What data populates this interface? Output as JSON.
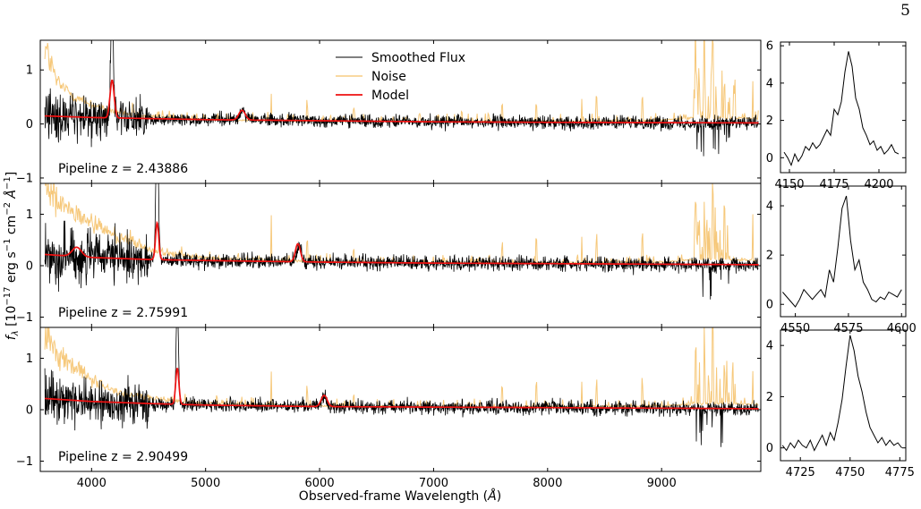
{
  "page_number": "5",
  "colors": {
    "flux": "#000000",
    "noise": "#f5c26b",
    "model": "#ee1111"
  },
  "shared": {
    "xlabel": "Observed-frame Wavelength (Å)",
    "ylabel": "f_λ [10^-17 erg s^-1 cm^-2 Å^-1]"
  },
  "legend": {
    "placement": "top-center of first panel",
    "entries": [
      "Smoothed Flux",
      "Noise",
      "Model"
    ]
  },
  "chart_data": [
    {
      "type": "line",
      "panel": "spectrum-1",
      "title": "Pipeline z = 2.43886",
      "xlim": [
        3550,
        9870
      ],
      "ylim": [
        -1.1,
        1.55
      ],
      "xticks": [
        4000,
        5000,
        6000,
        7000,
        8000,
        9000
      ],
      "yticks": [
        -1,
        0,
        1
      ],
      "series": [
        {
          "name": "Smoothed Flux",
          "color": "#000000",
          "baseline": 0.02,
          "noise_blue": 0.45,
          "noise_red": 0.12,
          "lines": [
            [
              4180,
              2.2,
              12
            ],
            [
              5330,
              0.2,
              25
            ]
          ]
        },
        {
          "name": "Noise",
          "color": "#f5c26b",
          "anchors": [
            [
              3590,
              1.45
            ],
            [
              3700,
              0.75
            ],
            [
              3900,
              0.45
            ],
            [
              4100,
              0.28
            ],
            [
              4400,
              0.15
            ],
            [
              5000,
              0.08
            ],
            [
              6000,
              0.05
            ],
            [
              7000,
              0.05
            ],
            [
              8000,
              0.05
            ],
            [
              9000,
              0.07
            ],
            [
              9300,
              0.12
            ],
            [
              9850,
              0.1
            ]
          ],
          "sky_lines": [
            [
              4360,
              0.2
            ],
            [
              5577,
              0.7
            ],
            [
              5890,
              0.35
            ],
            [
              6300,
              0.25
            ],
            [
              7246,
              0.25
            ],
            [
              7600,
              0.35
            ],
            [
              7900,
              0.4
            ],
            [
              8300,
              0.45
            ],
            [
              8430,
              0.5
            ],
            [
              8830,
              0.5
            ],
            [
              9300,
              1.2
            ],
            [
              9375,
              1.6
            ],
            [
              9450,
              1.4
            ],
            [
              9550,
              0.8
            ],
            [
              9800,
              0.7
            ]
          ]
        },
        {
          "name": "Model",
          "color": "#ee1111",
          "continuum": [
            [
              3580,
              0.15
            ],
            [
              4000,
              0.12
            ],
            [
              5000,
              0.08
            ],
            [
              6000,
              0.06
            ],
            [
              7000,
              0.04
            ],
            [
              8000,
              0.03
            ],
            [
              9800,
              0.02
            ]
          ],
          "lines": [
            [
              4180,
              0.7,
              18
            ],
            [
              5320,
              0.18,
              28
            ]
          ]
        }
      ]
    },
    {
      "type": "line",
      "panel": "spectrum-2",
      "title": "Pipeline z = 2.75991",
      "xlim": [
        3550,
        9870
      ],
      "ylim": [
        -1.2,
        1.6
      ],
      "xticks": [
        4000,
        5000,
        6000,
        7000,
        8000,
        9000
      ],
      "yticks": [
        -1,
        0,
        1
      ],
      "series": [
        {
          "name": "Smoothed Flux",
          "color": "#000000",
          "baseline": 0.05,
          "noise_blue": 0.6,
          "noise_red": 0.14,
          "lines": [
            [
              4575,
              2.3,
              12
            ],
            [
              5820,
              0.3,
              22
            ]
          ]
        },
        {
          "name": "Noise",
          "color": "#f5c26b",
          "anchors": [
            [
              3590,
              1.55
            ],
            [
              3700,
              1.2
            ],
            [
              3900,
              0.95
            ],
            [
              4100,
              0.7
            ],
            [
              4300,
              0.5
            ],
            [
              4500,
              0.3
            ],
            [
              5000,
              0.15
            ],
            [
              6000,
              0.08
            ],
            [
              7000,
              0.06
            ],
            [
              8000,
              0.06
            ],
            [
              9000,
              0.07
            ],
            [
              9300,
              0.12
            ],
            [
              9850,
              0.1
            ]
          ],
          "sky_lines": [
            [
              5577,
              1.0
            ],
            [
              5890,
              0.45
            ],
            [
              6300,
              0.3
            ],
            [
              7600,
              0.4
            ],
            [
              7900,
              0.5
            ],
            [
              8300,
              0.6
            ],
            [
              8430,
              0.6
            ],
            [
              8830,
              0.7
            ],
            [
              9300,
              1.2
            ],
            [
              9375,
              1.6
            ],
            [
              9450,
              1.5
            ],
            [
              9550,
              0.9
            ],
            [
              9800,
              0.9
            ]
          ]
        },
        {
          "name": "Model",
          "color": "#ee1111",
          "continuum": [
            [
              3580,
              0.22
            ],
            [
              4000,
              0.16
            ],
            [
              4500,
              0.12
            ],
            [
              5000,
              0.1
            ],
            [
              6000,
              0.07
            ],
            [
              7000,
              0.05
            ],
            [
              8000,
              0.04
            ],
            [
              9800,
              0.02
            ]
          ],
          "lines": [
            [
              3870,
              0.18,
              40
            ],
            [
              4575,
              0.72,
              14
            ],
            [
              5810,
              0.35,
              22
            ]
          ]
        }
      ]
    },
    {
      "type": "line",
      "panel": "spectrum-3",
      "title": "Pipeline z = 2.90499",
      "xlim": [
        3550,
        9870
      ],
      "ylim": [
        -1.2,
        1.6
      ],
      "xticks": [
        4000,
        5000,
        6000,
        7000,
        8000,
        9000
      ],
      "yticks": [
        -1,
        0,
        1
      ],
      "series": [
        {
          "name": "Smoothed Flux",
          "color": "#000000",
          "baseline": 0.05,
          "noise_blue": 0.55,
          "noise_red": 0.13,
          "lines": [
            [
              4752,
              2.0,
              10
            ],
            [
              6040,
              0.2,
              22
            ]
          ]
        },
        {
          "name": "Noise",
          "color": "#f5c26b",
          "anchors": [
            [
              3590,
              1.5
            ],
            [
              3700,
              1.1
            ],
            [
              3900,
              0.75
            ],
            [
              4100,
              0.45
            ],
            [
              4300,
              0.3
            ],
            [
              4600,
              0.2
            ],
            [
              5000,
              0.12
            ],
            [
              6000,
              0.07
            ],
            [
              7000,
              0.06
            ],
            [
              8000,
              0.06
            ],
            [
              9000,
              0.07
            ],
            [
              9300,
              0.12
            ],
            [
              9850,
              0.1
            ]
          ],
          "sky_lines": [
            [
              5577,
              0.9
            ],
            [
              5890,
              0.4
            ],
            [
              6300,
              0.3
            ],
            [
              7600,
              0.4
            ],
            [
              7900,
              0.45
            ],
            [
              8300,
              0.5
            ],
            [
              8430,
              0.55
            ],
            [
              8830,
              0.6
            ],
            [
              9300,
              1.2
            ],
            [
              9375,
              1.6
            ],
            [
              9450,
              1.5
            ],
            [
              9550,
              0.9
            ],
            [
              9800,
              0.8
            ]
          ]
        },
        {
          "name": "Model",
          "color": "#ee1111",
          "continuum": [
            [
              3580,
              0.22
            ],
            [
              4000,
              0.16
            ],
            [
              4500,
              0.12
            ],
            [
              5000,
              0.09
            ],
            [
              6000,
              0.06
            ],
            [
              7000,
              0.05
            ],
            [
              8000,
              0.04
            ],
            [
              9800,
              0.02
            ]
          ],
          "lines": [
            [
              4752,
              0.7,
              14
            ],
            [
              6040,
              0.22,
              26
            ]
          ]
        }
      ]
    },
    {
      "type": "line",
      "panel": "zoom-1",
      "xlim": [
        4145,
        4215
      ],
      "ylim": [
        -0.8,
        6.2
      ],
      "xticks": [
        4150,
        4175,
        4200
      ],
      "yticks": [
        0,
        2,
        4,
        6
      ],
      "series": [
        {
          "name": "Smoothed Flux",
          "color": "#000000",
          "x": [
            4147,
            4149,
            4151,
            4153,
            4155,
            4157,
            4159,
            4161,
            4163,
            4165,
            4167,
            4169,
            4171,
            4173,
            4175,
            4177,
            4179,
            4181,
            4183,
            4185,
            4187,
            4189,
            4191,
            4193,
            4195,
            4197,
            4199,
            4201,
            4203,
            4205,
            4207,
            4209,
            4211
          ],
          "y": [
            0.3,
            0.0,
            -0.4,
            0.2,
            -0.2,
            0.1,
            0.6,
            0.4,
            0.8,
            0.5,
            0.7,
            1.1,
            1.5,
            1.2,
            2.6,
            2.3,
            3.0,
            4.6,
            5.7,
            4.9,
            3.2,
            2.6,
            1.6,
            1.2,
            0.7,
            0.9,
            0.4,
            0.6,
            0.2,
            0.4,
            0.7,
            0.3,
            0.2
          ]
        }
      ]
    },
    {
      "type": "line",
      "panel": "zoom-2",
      "xlim": [
        4543,
        4602
      ],
      "ylim": [
        -0.5,
        4.8
      ],
      "xticks": [
        4550,
        4575,
        4600
      ],
      "yticks": [
        0,
        2,
        4
      ],
      "series": [
        {
          "name": "Smoothed Flux",
          "color": "#000000",
          "x": [
            4544,
            4546,
            4548,
            4550,
            4552,
            4554,
            4556,
            4558,
            4560,
            4562,
            4564,
            4566,
            4568,
            4570,
            4572,
            4574,
            4576,
            4578,
            4580,
            4582,
            4584,
            4586,
            4588,
            4590,
            4592,
            4594,
            4596,
            4598,
            4600
          ],
          "y": [
            0.5,
            0.3,
            0.1,
            -0.1,
            0.2,
            0.6,
            0.4,
            0.2,
            0.4,
            0.6,
            0.3,
            1.4,
            0.9,
            2.3,
            3.9,
            4.4,
            2.6,
            1.4,
            1.8,
            0.9,
            0.6,
            0.2,
            0.1,
            0.3,
            0.2,
            0.5,
            0.4,
            0.3,
            0.6
          ]
        }
      ]
    },
    {
      "type": "line",
      "panel": "zoom-3",
      "xlim": [
        4715,
        4778
      ],
      "ylim": [
        -0.5,
        4.6
      ],
      "xticks": [
        4725,
        4750,
        4775
      ],
      "yticks": [
        0,
        2,
        4
      ],
      "series": [
        {
          "name": "Smoothed Flux",
          "color": "#000000",
          "x": [
            4716,
            4718,
            4720,
            4722,
            4724,
            4726,
            4728,
            4730,
            4732,
            4734,
            4736,
            4738,
            4740,
            4742,
            4744,
            4746,
            4748,
            4750,
            4752,
            4754,
            4756,
            4758,
            4760,
            4762,
            4764,
            4766,
            4768,
            4770,
            4772,
            4774,
            4776
          ],
          "y": [
            0.1,
            -0.1,
            0.2,
            0.0,
            0.3,
            0.1,
            0.0,
            0.3,
            -0.1,
            0.2,
            0.5,
            0.1,
            0.6,
            0.3,
            1.0,
            1.9,
            3.2,
            4.4,
            3.8,
            2.8,
            2.2,
            1.4,
            0.8,
            0.5,
            0.2,
            0.4,
            0.1,
            0.3,
            0.1,
            0.2,
            0.0
          ]
        }
      ]
    }
  ]
}
